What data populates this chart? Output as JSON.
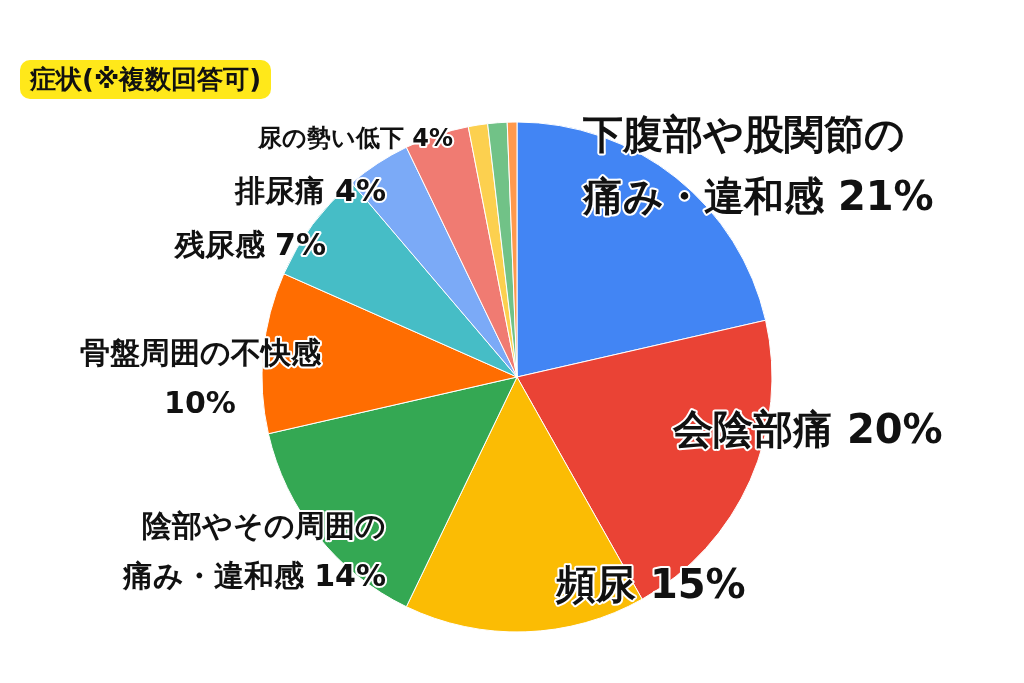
{
  "chart_data": {
    "type": "pie",
    "title": "症状(※複数回答可)",
    "categories": [
      "下腹部や股関節の痛み・違和感",
      "会陰部痛",
      "頻尿",
      "陰部やその周囲の痛み・違和感",
      "骨盤周囲の不快感",
      "残尿感",
      "排尿痛",
      "尿の勢い低下",
      null,
      null,
      null
    ],
    "values": [
      21,
      20,
      15,
      14,
      10,
      7,
      4,
      4,
      1.2,
      1.2,
      0.6
    ],
    "value_labels": [
      "21%",
      "20%",
      "15%",
      "14%",
      "10%",
      "7%",
      "4%",
      "4%",
      null,
      null,
      null
    ],
    "colors": [
      "#4285f4",
      "#ea4335",
      "#fbbc04",
      "#34a853",
      "#ff6d01",
      "#46bdc6",
      "#7baaf7",
      "#f07b72",
      "#fcd04f",
      "#71c287",
      "#ff994d"
    ],
    "legend": false
  }
}
